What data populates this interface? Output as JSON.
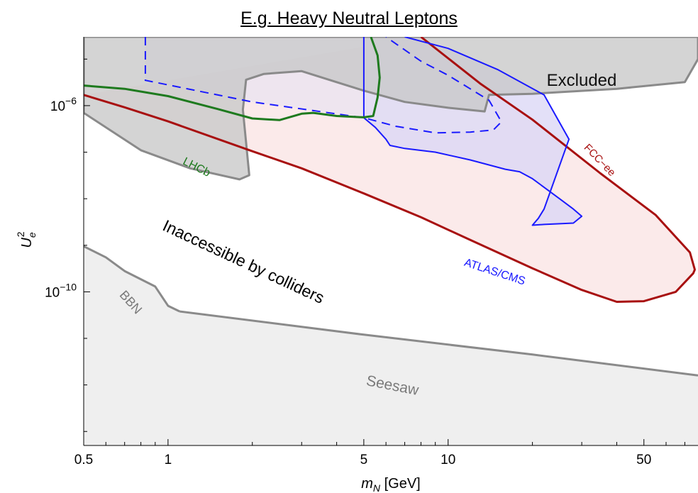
{
  "title": "E.g. Heavy Neutral Leptons",
  "chart_data": {
    "type": "area",
    "title": "E.g. Heavy Neutral Leptons",
    "xlabel": "m_N [GeV]",
    "ylabel": "U_e^2",
    "xscale": "log",
    "yscale": "log",
    "xlim": [
      0.5,
      78
    ],
    "ylim": [
      5e-14,
      3e-05
    ],
    "x_ticks": [
      {
        "value": 0.5,
        "label": "0.5"
      },
      {
        "value": 1,
        "label": "1"
      },
      {
        "value": 5,
        "label": "5"
      },
      {
        "value": 10,
        "label": "10"
      },
      {
        "value": 50,
        "label": "50"
      }
    ],
    "y_ticks": [
      {
        "value": 1e-06,
        "label": "10^-6",
        "base": "10",
        "exp": "−6"
      },
      {
        "value": 1e-10,
        "label": "10^-10",
        "base": "10",
        "exp": "−10"
      }
    ],
    "grid": false,
    "colors": {
      "excluded": "#c8c8c8",
      "excluded_edge": "#8a8a8a",
      "lhcb": "#1e7a1e",
      "fcc": "#a81010",
      "fcc_fill": "#fbeaea",
      "atlas": "#1a1aff",
      "atlas_fill": "#d9d5f5",
      "seesaw_fill": "#efefef",
      "seesaw_edge": "#8a8a8a"
    },
    "annotations": {
      "excluded": "Excluded",
      "lhcb": "LHCb",
      "fcc": "FCC−ee",
      "atlas": "ATLAS/CMS",
      "inaccessible": "Inaccessible by colliders",
      "bbn": "BBN",
      "seesaw": "Seesaw"
    },
    "series": [
      {
        "name": "Excluded",
        "kind": "region",
        "points": [
          [
            0.5,
            3e-05
          ],
          [
            78,
            3e-05
          ],
          [
            78,
            1e-05
          ],
          [
            70,
            3.2e-06
          ],
          [
            40,
            2.3e-06
          ],
          [
            20,
            1.8e-06
          ],
          [
            14,
            1.7e-06
          ],
          [
            13.5,
            7.5e-07
          ],
          [
            10,
            9e-07
          ],
          [
            7,
            1.2e-06
          ],
          [
            5,
            2.1e-06
          ],
          [
            4,
            3.2e-06
          ],
          [
            3,
            5.5e-06
          ],
          [
            2.2,
            4.8e-06
          ],
          [
            1.9,
            3.6e-06
          ],
          [
            1.85,
            8.2e-07
          ],
          [
            1.95,
            3.2e-08
          ],
          [
            1.8,
            2.6e-08
          ],
          [
            1.2,
            4.5e-08
          ],
          [
            0.8,
            1.1e-07
          ],
          [
            0.5,
            7e-07
          ]
        ]
      },
      {
        "name": "Seesaw",
        "kind": "region",
        "points": [
          [
            0.5,
            9.5e-10
          ],
          [
            0.6,
            5.5e-10
          ],
          [
            0.7,
            2.8e-10
          ],
          [
            0.9,
            1.3e-10
          ],
          [
            1,
            5e-11
          ],
          [
            1.1,
            3.8e-11
          ],
          [
            5,
            1.2e-11
          ],
          [
            20,
            4.5e-12
          ],
          [
            78,
            1.6e-12
          ],
          [
            78,
            5e-14
          ],
          [
            0.5,
            5e-14
          ]
        ]
      },
      {
        "name": "LHCb",
        "kind": "curve",
        "points": [
          [
            0.5,
            2.7e-06
          ],
          [
            0.7,
            2.3e-06
          ],
          [
            1,
            1.6e-06
          ],
          [
            1.5,
            8.5e-07
          ],
          [
            2,
            5.3e-07
          ],
          [
            2.5,
            4.9e-07
          ],
          [
            3,
            6.7e-07
          ],
          [
            3.3,
            7e-07
          ],
          [
            4,
            6e-07
          ],
          [
            5,
            5.6e-07
          ],
          [
            5.4,
            6e-07
          ],
          [
            5.6,
            1.5e-06
          ],
          [
            5.7,
            4e-06
          ],
          [
            5.6,
            1.2e-05
          ],
          [
            5.3,
            3e-05
          ]
        ]
      },
      {
        "name": "FCC-ee",
        "kind": "curve",
        "points": [
          [
            0.5,
            1.7e-06
          ],
          [
            0.7,
            9.2e-07
          ],
          [
            1,
            4.6e-07
          ],
          [
            2,
            1.05e-07
          ],
          [
            3,
            4.5e-08
          ],
          [
            5,
            1.3e-08
          ],
          [
            8,
            4e-09
          ],
          [
            12,
            1.3e-09
          ],
          [
            20,
            3.2e-10
          ],
          [
            30,
            1.1e-10
          ],
          [
            40,
            6.1e-11
          ],
          [
            50,
            6.3e-11
          ],
          [
            65,
            1e-10
          ],
          [
            75,
            2.5e-10
          ],
          [
            76,
            3e-10
          ],
          [
            73,
            7e-10
          ],
          [
            55,
            4.5e-09
          ],
          [
            35,
            3.5e-08
          ],
          [
            20,
            5e-07
          ],
          [
            13,
            3e-06
          ],
          [
            8,
            3e-05
          ]
        ]
      },
      {
        "name": "ATLAS/CMS",
        "kind": "curve",
        "points": [
          [
            5,
            3e-05
          ],
          [
            5,
            5.5e-07
          ],
          [
            5.5,
            3.4e-07
          ],
          [
            6,
            1.9e-07
          ],
          [
            6.2,
            1.4e-07
          ],
          [
            7,
            1.2e-07
          ],
          [
            9,
            1e-07
          ],
          [
            12,
            6.8e-08
          ],
          [
            16,
            4.3e-08
          ],
          [
            18,
            3.8e-08
          ],
          [
            20,
            2.7e-08
          ],
          [
            25,
            1e-08
          ],
          [
            28,
            6e-09
          ],
          [
            30,
            4.2e-09
          ],
          [
            28,
            3e-09
          ],
          [
            22,
            2.8e-09
          ],
          [
            20,
            2.7e-09
          ],
          [
            21,
            3.8e-09
          ],
          [
            22,
            6e-09
          ],
          [
            27,
            1.9e-07
          ],
          [
            22,
            1.7e-06
          ],
          [
            15,
            6e-06
          ],
          [
            10,
            1.7e-05
          ],
          [
            7,
            3e-05
          ]
        ]
      },
      {
        "name": "ATLAS/CMS (dashed)",
        "kind": "dashed",
        "points": [
          [
            0.83,
            3e-05
          ],
          [
            0.83,
            3.5e-06
          ],
          [
            2,
            1.2e-06
          ],
          [
            5,
            5.5e-07
          ],
          [
            6.5,
            3.6e-07
          ],
          [
            9,
            2.6e-07
          ],
          [
            12,
            2.7e-07
          ],
          [
            14.5,
            3e-07
          ],
          [
            15.5,
            4.5e-07
          ],
          [
            14,
            1.3e-06
          ],
          [
            10,
            4.5e-06
          ],
          [
            8,
            9e-06
          ],
          [
            6,
            3e-05
          ]
        ]
      },
      {
        "name": "BBN",
        "kind": "curve",
        "points": [
          [
            0.5,
            9.5e-10
          ],
          [
            0.6,
            5.5e-10
          ],
          [
            0.7,
            2.8e-10
          ],
          [
            0.9,
            1.3e-10
          ],
          [
            1,
            5e-11
          ],
          [
            1.1,
            3.8e-11
          ]
        ]
      },
      {
        "name": "Seesaw",
        "kind": "curve",
        "points": [
          [
            1.1,
            3.8e-11
          ],
          [
            5,
            1.2e-11
          ],
          [
            20,
            4.5e-12
          ],
          [
            78,
            1.6e-12
          ]
        ]
      }
    ]
  }
}
